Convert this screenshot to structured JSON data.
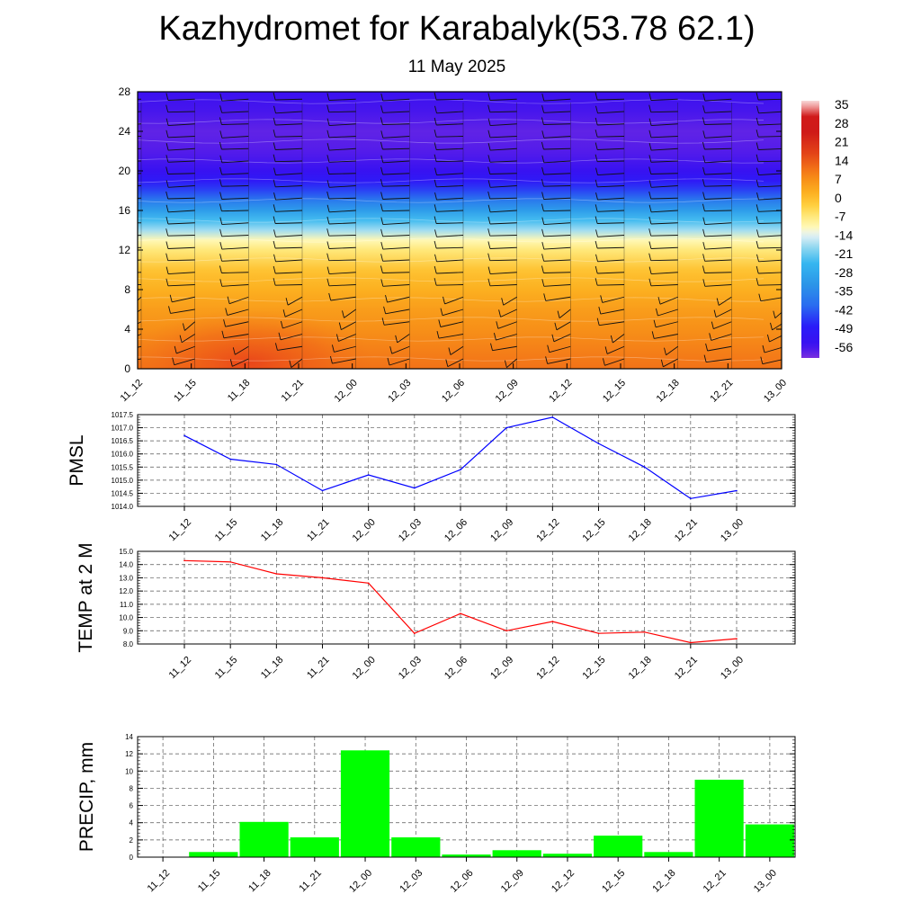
{
  "header": {
    "title": "Kazhydromet for Karabalyk(53.78 62.1)",
    "subtitle": "11 May 2025"
  },
  "time_labels": [
    "11_12",
    "11_15",
    "11_18",
    "11_21",
    "12_00",
    "12_03",
    "12_06",
    "12_09",
    "12_12",
    "12_15",
    "12_18",
    "12_21",
    "13_00"
  ],
  "chart_data": [
    {
      "type": "heatmap",
      "x": [
        "11_12",
        "11_15",
        "11_18",
        "11_21",
        "12_00",
        "12_03",
        "12_06",
        "12_09",
        "12_12",
        "12_15",
        "12_18",
        "12_21",
        "13_00"
      ],
      "y_ticks": [
        0,
        4,
        8,
        12,
        16,
        20,
        24,
        28
      ],
      "ylim": [
        0,
        28
      ],
      "temperature_profile": [
        {
          "y": 0,
          "value": 12
        },
        {
          "y": 2,
          "value": 10
        },
        {
          "y": 4,
          "value": 8
        },
        {
          "y": 6,
          "value": 6
        },
        {
          "y": 8,
          "value": 3
        },
        {
          "y": 10,
          "value": 0
        },
        {
          "y": 12,
          "value": -6
        },
        {
          "y": 13,
          "value": -10
        },
        {
          "y": 14,
          "value": -17
        },
        {
          "y": 15,
          "value": -23
        },
        {
          "y": 16,
          "value": -30
        },
        {
          "y": 17,
          "value": -37
        },
        {
          "y": 18,
          "value": -44
        },
        {
          "y": 19,
          "value": -50
        },
        {
          "y": 20,
          "value": -54
        },
        {
          "y": 22,
          "value": -57
        },
        {
          "y": 24,
          "value": -58
        },
        {
          "y": 26,
          "value": -56
        },
        {
          "y": 28,
          "value": -55
        }
      ],
      "warm_core": {
        "x_center": "11_18",
        "y_max": 4,
        "value": 16
      },
      "colorbar": {
        "labels": [
          "35",
          "28",
          "21",
          "14",
          "7",
          "0",
          "-7",
          "-14",
          "-21",
          "-28",
          "-35",
          "-42",
          "-49",
          "-56"
        ],
        "range": [
          -60,
          38
        ]
      },
      "wind_barbs": true,
      "grid": false
    },
    {
      "type": "line",
      "ylabel": "PMSL",
      "x": [
        "11_12",
        "11_15",
        "11_18",
        "11_21",
        "12_00",
        "12_03",
        "12_06",
        "12_09",
        "12_12",
        "12_15",
        "12_18",
        "12_21",
        "13_00"
      ],
      "values": [
        1016.7,
        1015.8,
        1015.6,
        1014.6,
        1015.2,
        1014.7,
        1015.4,
        1017.0,
        1017.4,
        1016.4,
        1015.5,
        1014.3,
        1014.6
      ],
      "y_ticks": [
        "1014.0",
        "1014.5",
        "1015.0",
        "1015.5",
        "1016.0",
        "1016.5",
        "1017.0",
        "1017.5"
      ],
      "ylim": [
        1014.0,
        1017.5
      ],
      "color": "#0000ff",
      "grid": true
    },
    {
      "type": "line",
      "ylabel": "TEMP at 2 M",
      "x": [
        "11_12",
        "11_15",
        "11_18",
        "11_21",
        "12_00",
        "12_03",
        "12_06",
        "12_09",
        "12_12",
        "12_15",
        "12_18",
        "12_21",
        "13_00"
      ],
      "values": [
        14.3,
        14.2,
        13.3,
        13.0,
        12.6,
        8.8,
        10.3,
        9.0,
        9.7,
        8.8,
        8.9,
        8.1,
        8.4
      ],
      "y_ticks": [
        "8.0",
        "9.0",
        "10.0",
        "11.0",
        "12.0",
        "13.0",
        "14.0",
        "15.0"
      ],
      "ylim": [
        8.0,
        15.0
      ],
      "color": "#ff0000",
      "grid": true
    },
    {
      "type": "bar",
      "ylabel": "PRECIP, mm",
      "categories": [
        "11_12",
        "11_15",
        "11_18",
        "11_21",
        "12_00",
        "12_03",
        "12_06",
        "12_09",
        "12_12",
        "12_15",
        "12_18",
        "12_21",
        "13_00"
      ],
      "values": [
        0,
        0.6,
        4.1,
        2.3,
        12.4,
        2.3,
        0.3,
        0.8,
        0.4,
        2.5,
        0.6,
        9.0,
        3.8
      ],
      "y_ticks": [
        "0",
        "2",
        "4",
        "6",
        "8",
        "10",
        "12",
        "14"
      ],
      "ylim": [
        0,
        14
      ],
      "color": "#00ff00",
      "grid": true
    }
  ]
}
